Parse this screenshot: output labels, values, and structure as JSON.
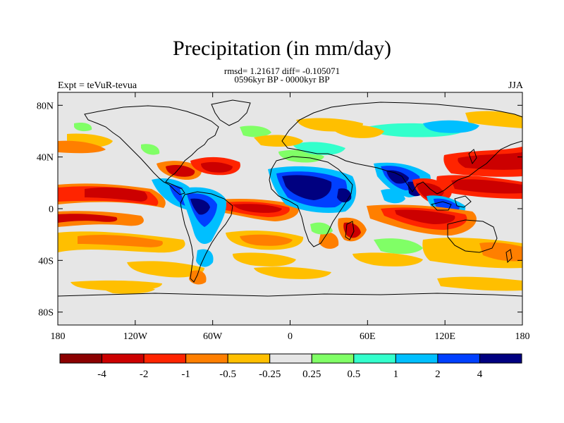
{
  "title": "Precipitation (in mm/day)",
  "subtitle_stats": "rmsd= 1.21617 diff= -0.105071",
  "subtitle_period": "0596kyr BP - 0000kyr BP",
  "left_string": "Expt = teVuR-tevua",
  "right_string": "JJA",
  "map": {
    "projection": "cylindrical equidistant",
    "lon_range": [
      -180,
      180
    ],
    "lat_range": [
      -90,
      90
    ],
    "background_color": "#e6e6e6",
    "coastline_color": "#000000",
    "lat_ticks": [
      {
        "value": 80,
        "label": "80N"
      },
      {
        "value": 40,
        "label": "40N"
      },
      {
        "value": 0,
        "label": "0"
      },
      {
        "value": -40,
        "label": "40S"
      },
      {
        "value": -80,
        "label": "80S"
      }
    ],
    "lon_ticks": [
      {
        "value": -180,
        "label": "180"
      },
      {
        "value": -120,
        "label": "120W"
      },
      {
        "value": -60,
        "label": "60W"
      },
      {
        "value": 0,
        "label": "0"
      },
      {
        "value": 60,
        "label": "60E"
      },
      {
        "value": 120,
        "label": "120E"
      },
      {
        "value": 180,
        "label": "180"
      }
    ]
  },
  "colorbar": {
    "colors": [
      "#8b0000",
      "#cc0000",
      "#ff2400",
      "#ff7f00",
      "#ffbf00",
      "#e6e6e6",
      "#80ff66",
      "#33ffcc",
      "#00bfff",
      "#0040ff",
      "#000080"
    ],
    "labels": [
      "-4",
      "-2",
      "-1",
      "-0.5",
      "-0.25",
      "0.25",
      "0.5",
      "1",
      "2",
      "4"
    ]
  },
  "chart_data": {
    "type": "heatmap",
    "title": "Precipitation (in mm/day)",
    "levels": [
      -4,
      -2,
      -1,
      -0.5,
      -0.25,
      0.25,
      0.5,
      1,
      2,
      4
    ],
    "regions": [
      {
        "lon": [
          -180,
          -110
        ],
        "lat": [
          2,
          12
        ],
        "level_index": 1
      },
      {
        "lon": [
          -150,
          -95
        ],
        "lat": [
          4,
          10
        ],
        "level_index": 0
      },
      {
        "lon": [
          -180,
          -100
        ],
        "lat": [
          -14,
          -2
        ],
        "level_index": 2
      },
      {
        "lon": [
          -95,
          -75
        ],
        "lat": [
          22,
          36
        ],
        "level_index": 2
      },
      {
        "lon": [
          -75,
          -50
        ],
        "lat": [
          25,
          40
        ],
        "level_index": 1
      },
      {
        "lon": [
          -90,
          -30
        ],
        "lat": [
          -8,
          12
        ],
        "level_index": 8
      },
      {
        "lon": [
          -80,
          -50
        ],
        "lat": [
          -5,
          8
        ],
        "level_index": 10
      },
      {
        "lon": [
          -45,
          15
        ],
        "lat": [
          -2,
          8
        ],
        "level_index": 1
      },
      {
        "lon": [
          -15,
          35
        ],
        "lat": [
          2,
          24
        ],
        "level_index": 8
      },
      {
        "lon": [
          0,
          25
        ],
        "lat": [
          12,
          22
        ],
        "level_index": 10
      },
      {
        "lon": [
          60,
          100
        ],
        "lat": [
          -12,
          2
        ],
        "level_index": 0
      },
      {
        "lon": [
          75,
          120
        ],
        "lat": [
          15,
          32
        ],
        "level_index": 8
      },
      {
        "lon": [
          95,
          125
        ],
        "lat": [
          5,
          25
        ],
        "level_index": 1
      },
      {
        "lon": [
          125,
          180
        ],
        "lat": [
          25,
          45
        ],
        "level_index": 1
      },
      {
        "lon": [
          100,
          180
        ],
        "lat": [
          -40,
          -20
        ],
        "level_index": 3
      },
      {
        "lon": [
          -150,
          -80
        ],
        "lat": [
          -40,
          -20
        ],
        "level_index": 4
      },
      {
        "lon": [
          -40,
          10
        ],
        "lat": [
          -40,
          -25
        ],
        "level_index": 3
      }
    ]
  }
}
